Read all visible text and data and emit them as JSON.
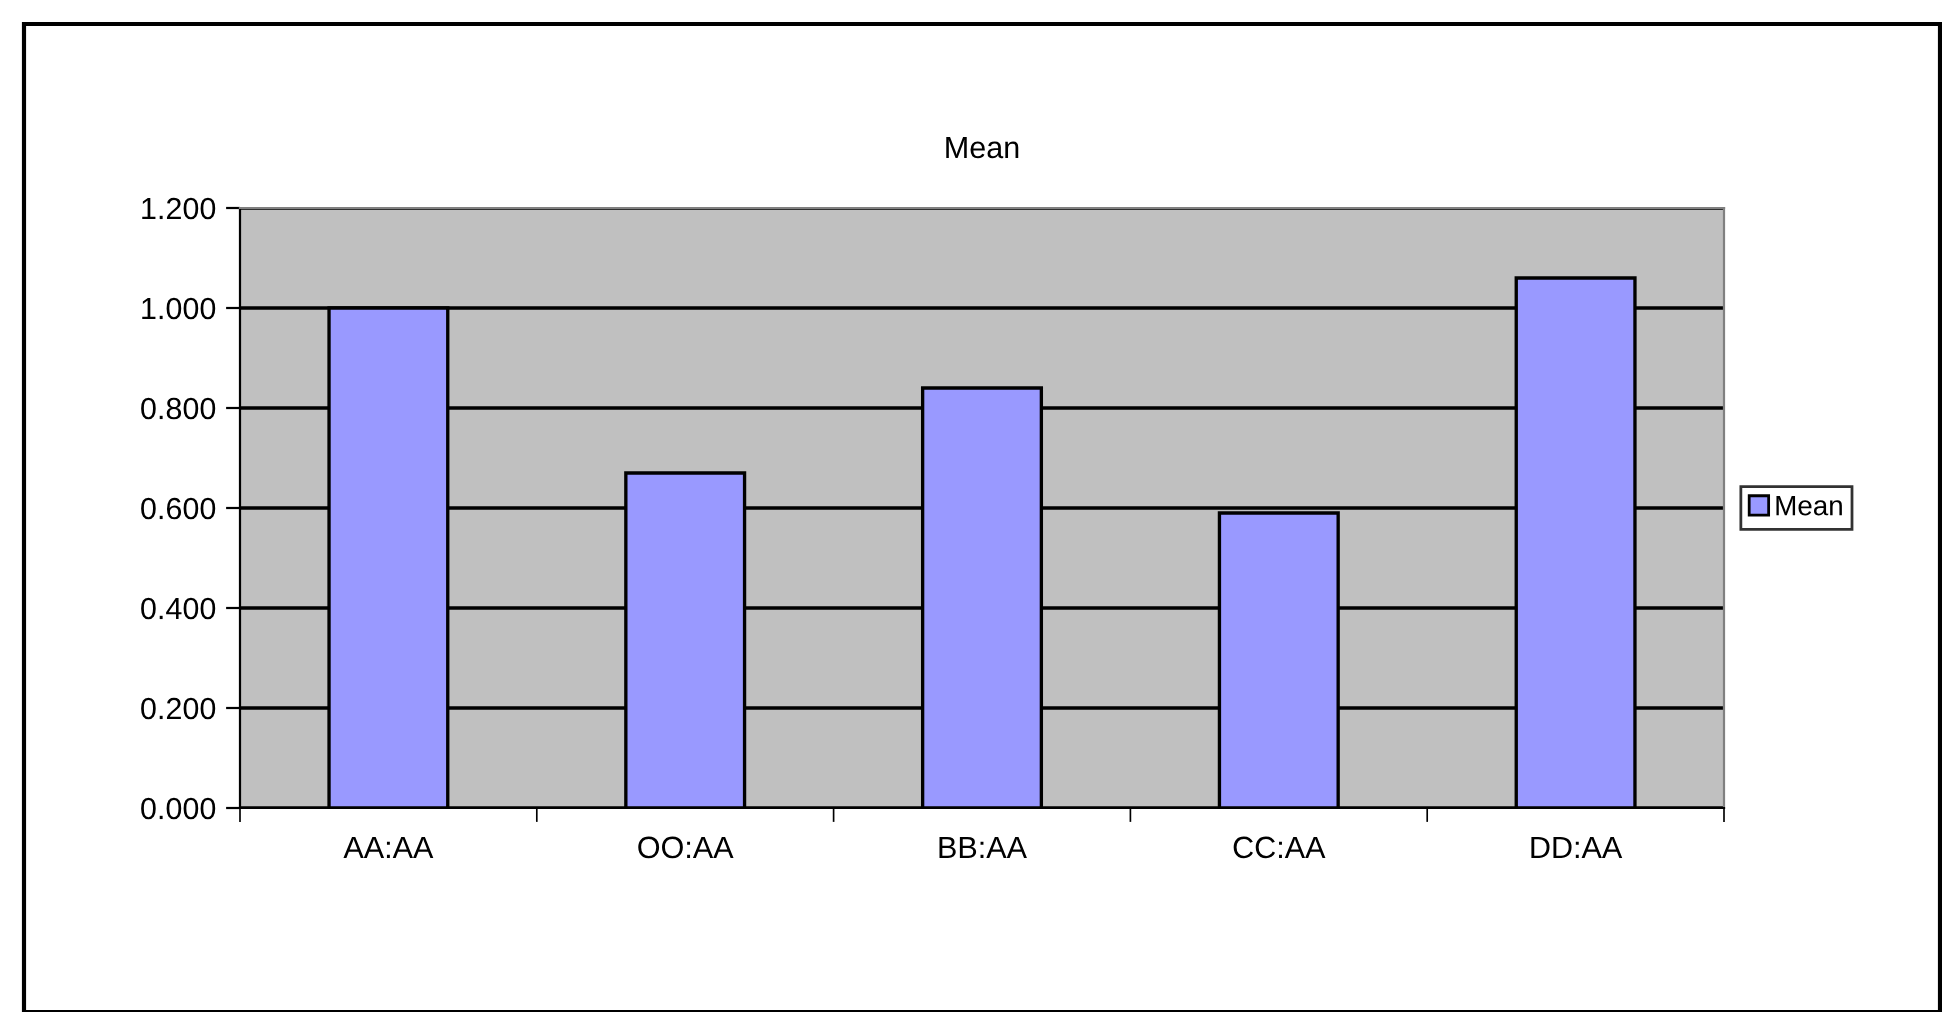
{
  "chart_data": {
    "type": "bar",
    "title": "Mean",
    "categories": [
      "AA:AA",
      "OO:AA",
      "BB:AA",
      "CC:AA",
      "DD:AA"
    ],
    "series": [
      {
        "name": "Mean",
        "color": "#9999ff",
        "values": [
          1.0,
          0.67,
          0.84,
          0.59,
          1.06
        ]
      }
    ],
    "ylim": [
      0,
      1.2
    ],
    "yticks": [
      {
        "value": 0,
        "label": "0.000"
      },
      {
        "value": 0.2,
        "label": "0.200"
      },
      {
        "value": 0.4,
        "label": "0.400"
      },
      {
        "value": 0.6,
        "label": "0.600"
      },
      {
        "value": 0.8,
        "label": "0.800"
      },
      {
        "value": 1.0,
        "label": "1.000"
      },
      {
        "value": 1.2,
        "label": "1.200"
      }
    ],
    "grid": "y",
    "legend": "right"
  }
}
